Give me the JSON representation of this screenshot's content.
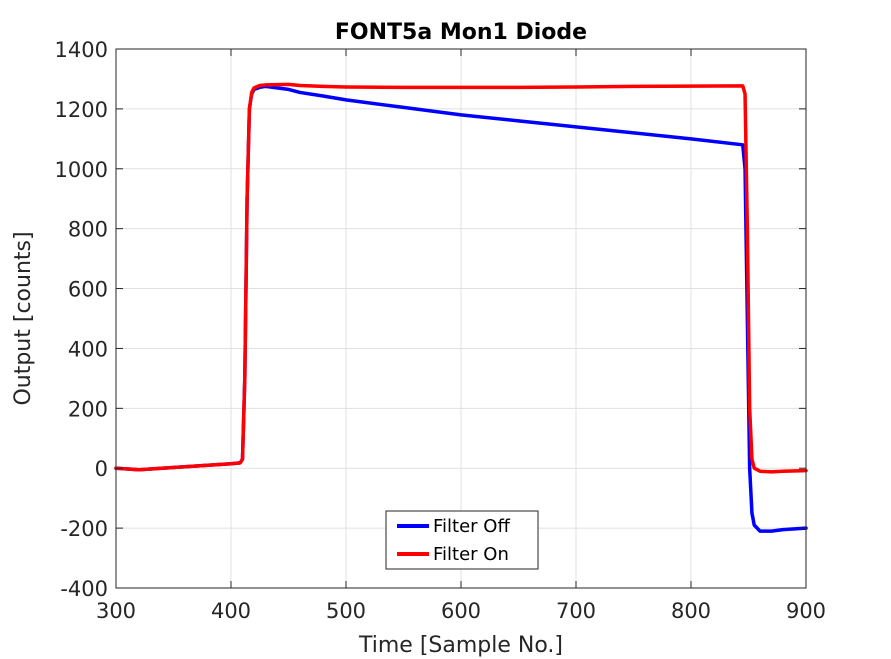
{
  "chart_data": {
    "type": "line",
    "title": "FONT5a Mon1 Diode",
    "xlabel": "Time [Sample No.]",
    "ylabel": "Output [counts]",
    "xlim": [
      300,
      900
    ],
    "ylim": [
      -400,
      1400
    ],
    "xticks": [
      300,
      400,
      500,
      600,
      700,
      800,
      900
    ],
    "yticks": [
      -400,
      -200,
      0,
      200,
      400,
      600,
      800,
      1000,
      1200,
      1400
    ],
    "grid": true,
    "legend_position": "bottom-center",
    "series": [
      {
        "name": "Filter Off",
        "color": "#0000ff",
        "x": [
          300,
          320,
          340,
          360,
          380,
          400,
          408,
          410,
          412,
          414,
          416,
          418,
          420,
          425,
          430,
          450,
          460,
          480,
          500,
          550,
          600,
          650,
          700,
          750,
          800,
          845,
          847,
          849,
          851,
          853,
          855,
          860,
          870,
          880,
          900
        ],
        "y": [
          0,
          -5,
          0,
          5,
          10,
          15,
          18,
          30,
          300,
          900,
          1200,
          1250,
          1265,
          1272,
          1275,
          1265,
          1255,
          1243,
          1230,
          1205,
          1180,
          1160,
          1140,
          1120,
          1100,
          1080,
          1000,
          500,
          0,
          -150,
          -190,
          -210,
          -210,
          -205,
          -200
        ]
      },
      {
        "name": "Filter On",
        "color": "#ff0000",
        "x": [
          300,
          320,
          340,
          360,
          380,
          400,
          408,
          410,
          412,
          414,
          416,
          418,
          420,
          425,
          430,
          450,
          460,
          480,
          500,
          550,
          600,
          650,
          700,
          750,
          800,
          845,
          847,
          849,
          851,
          853,
          855,
          860,
          870,
          880,
          900
        ],
        "y": [
          0,
          -5,
          0,
          5,
          10,
          15,
          18,
          30,
          300,
          900,
          1200,
          1255,
          1270,
          1278,
          1280,
          1282,
          1278,
          1275,
          1273,
          1272,
          1272,
          1272,
          1273,
          1275,
          1276,
          1277,
          1250,
          800,
          200,
          30,
          0,
          -10,
          -12,
          -10,
          -8
        ]
      }
    ]
  }
}
